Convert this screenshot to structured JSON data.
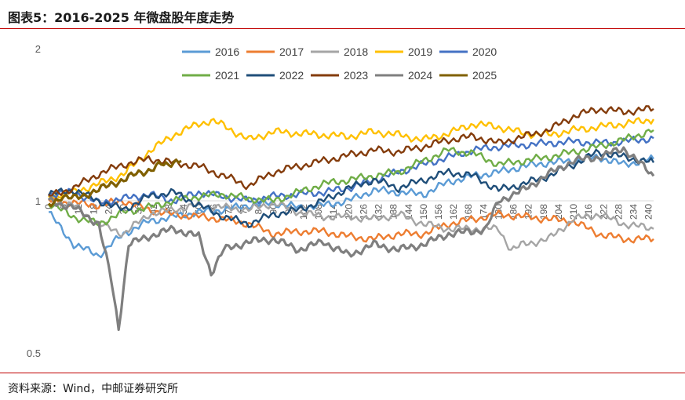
{
  "header": {
    "title": "图表5：2016-2025 年微盘股年度走势"
  },
  "footer": {
    "source": "资料来源：Wind，中邮证券研究所"
  },
  "colors": {
    "rule": "#c00000",
    "axis": "#d9d9d9",
    "text": "#595959"
  },
  "chart_data": {
    "type": "line",
    "title": "",
    "xlabel": "",
    "ylabel": "",
    "y_scale": "log",
    "ylim": [
      0.5,
      2
    ],
    "yticks": [
      0.5,
      1,
      2
    ],
    "xlim": [
      0,
      242
    ],
    "xticks": [
      0,
      6,
      12,
      18,
      24,
      30,
      36,
      42,
      48,
      54,
      60,
      66,
      72,
      78,
      84,
      90,
      96,
      102,
      108,
      114,
      120,
      126,
      132,
      138,
      144,
      150,
      156,
      162,
      168,
      174,
      180,
      186,
      192,
      198,
      204,
      210,
      216,
      222,
      228,
      234,
      240
    ],
    "legend_position": "top",
    "series": [
      {
        "name": "2016",
        "color": "#5b9bd5",
        "x": [
          0,
          5,
          10,
          20,
          30,
          40,
          50,
          60,
          70,
          80,
          90,
          100,
          110,
          120,
          130,
          140,
          150,
          160,
          170,
          180,
          190,
          200,
          210,
          220,
          230,
          242
        ],
        "y": [
          0.95,
          0.88,
          0.82,
          0.78,
          0.86,
          0.91,
          0.93,
          0.95,
          0.96,
          0.98,
          0.99,
          0.97,
          0.98,
          1.0,
          1.05,
          1.04,
          1.03,
          1.09,
          1.12,
          1.14,
          1.17,
          1.19,
          1.2,
          1.22,
          1.18,
          1.21
        ]
      },
      {
        "name": "2017",
        "color": "#ed7d31",
        "x": [
          0,
          10,
          20,
          30,
          40,
          50,
          60,
          70,
          80,
          90,
          100,
          110,
          120,
          130,
          140,
          150,
          160,
          170,
          180,
          190,
          200,
          210,
          220,
          230,
          242
        ],
        "y": [
          1.0,
          0.99,
          0.98,
          1.0,
          0.96,
          0.94,
          0.93,
          0.92,
          0.9,
          0.86,
          0.87,
          0.87,
          0.85,
          0.84,
          0.86,
          0.86,
          0.9,
          0.92,
          0.94,
          0.93,
          0.92,
          0.91,
          0.86,
          0.84,
          0.84
        ]
      },
      {
        "name": "2018",
        "color": "#a5a5a5",
        "x": [
          0,
          10,
          20,
          30,
          40,
          50,
          60,
          70,
          80,
          90,
          100,
          110,
          120,
          130,
          140,
          150,
          160,
          170,
          180,
          185,
          190,
          200,
          210,
          220,
          230,
          242
        ],
        "y": [
          1.0,
          0.98,
          0.9,
          0.86,
          0.94,
          0.96,
          0.98,
          0.97,
          0.96,
          0.99,
          0.95,
          0.93,
          0.93,
          0.92,
          0.94,
          0.9,
          0.88,
          0.88,
          0.88,
          0.8,
          0.82,
          0.84,
          0.92,
          0.94,
          0.9,
          0.88
        ]
      },
      {
        "name": "2019",
        "color": "#ffc000",
        "x": [
          0,
          10,
          20,
          30,
          40,
          50,
          60,
          65,
          70,
          80,
          90,
          100,
          110,
          120,
          130,
          140,
          150,
          160,
          170,
          180,
          190,
          200,
          210,
          220,
          230,
          242
        ],
        "y": [
          1.02,
          1.04,
          1.08,
          1.13,
          1.25,
          1.35,
          1.42,
          1.44,
          1.41,
          1.32,
          1.37,
          1.36,
          1.35,
          1.34,
          1.37,
          1.35,
          1.32,
          1.36,
          1.42,
          1.4,
          1.36,
          1.35,
          1.38,
          1.4,
          1.42,
          1.45
        ]
      },
      {
        "name": "2020",
        "color": "#4472c4",
        "x": [
          0,
          10,
          20,
          30,
          40,
          50,
          60,
          70,
          80,
          90,
          100,
          110,
          120,
          130,
          140,
          150,
          160,
          170,
          180,
          190,
          200,
          210,
          220,
          230,
          242
        ],
        "y": [
          1.03,
          1.04,
          0.99,
          1.01,
          1.03,
          1.0,
          1.04,
          1.02,
          1.0,
          1.02,
          1.03,
          1.04,
          1.06,
          1.1,
          1.14,
          1.18,
          1.22,
          1.26,
          1.28,
          1.29,
          1.3,
          1.31,
          1.3,
          1.31,
          1.33
        ]
      },
      {
        "name": "2021",
        "color": "#70ad47",
        "x": [
          0,
          10,
          20,
          30,
          40,
          50,
          60,
          70,
          80,
          90,
          100,
          110,
          120,
          130,
          140,
          150,
          160,
          170,
          180,
          190,
          200,
          210,
          220,
          230,
          242
        ],
        "y": [
          0.99,
          0.93,
          0.9,
          0.95,
          0.97,
          1.0,
          1.02,
          1.03,
          1.01,
          1.0,
          1.04,
          1.08,
          1.1,
          1.12,
          1.14,
          1.2,
          1.26,
          1.24,
          1.18,
          1.2,
          1.22,
          1.25,
          1.28,
          1.32,
          1.38
        ]
      },
      {
        "name": "2022",
        "color": "#1f4e79",
        "x": [
          0,
          10,
          20,
          30,
          40,
          50,
          60,
          70,
          80,
          90,
          100,
          110,
          120,
          130,
          140,
          150,
          160,
          170,
          180,
          190,
          200,
          210,
          220,
          230,
          242
        ],
        "y": [
          1.03,
          1.05,
          1.0,
          0.96,
          1.02,
          1.04,
          0.98,
          0.93,
          0.9,
          0.94,
          0.96,
          1.0,
          1.06,
          1.1,
          1.06,
          1.1,
          1.14,
          1.12,
          1.05,
          1.08,
          1.12,
          1.18,
          1.25,
          1.22,
          1.19
        ]
      },
      {
        "name": "2023",
        "color": "#843c0c",
        "x": [
          0,
          10,
          20,
          30,
          40,
          50,
          60,
          70,
          80,
          90,
          100,
          110,
          120,
          130,
          140,
          150,
          160,
          170,
          180,
          190,
          200,
          210,
          220,
          230,
          242
        ],
        "y": [
          1.02,
          1.06,
          1.13,
          1.18,
          1.21,
          1.19,
          1.17,
          1.12,
          1.07,
          1.14,
          1.17,
          1.2,
          1.23,
          1.26,
          1.25,
          1.28,
          1.32,
          1.34,
          1.3,
          1.34,
          1.38,
          1.47,
          1.52,
          1.5,
          1.52
        ]
      },
      {
        "name": "2024",
        "color": "#7f7f7f",
        "x": [
          0,
          10,
          20,
          25,
          28,
          32,
          40,
          50,
          60,
          65,
          70,
          80,
          90,
          100,
          110,
          120,
          130,
          140,
          150,
          160,
          170,
          175,
          180,
          190,
          200,
          210,
          220,
          230,
          242
        ],
        "y": [
          1.0,
          0.97,
          0.9,
          0.7,
          0.56,
          0.82,
          0.85,
          0.88,
          0.85,
          0.72,
          0.8,
          0.83,
          0.84,
          0.8,
          0.83,
          0.78,
          0.82,
          0.8,
          0.82,
          0.86,
          0.87,
          0.88,
          1.0,
          1.05,
          1.13,
          1.2,
          1.22,
          1.27,
          1.12
        ]
      },
      {
        "name": "2025",
        "color": "#806000",
        "x": [
          0,
          5,
          10,
          15,
          20,
          25,
          30,
          35,
          40,
          45,
          48,
          50,
          53
        ],
        "y": [
          0.98,
          1.02,
          1.01,
          1.03,
          1.05,
          1.08,
          1.1,
          1.13,
          1.15,
          1.18,
          1.17,
          1.2,
          1.2
        ]
      }
    ]
  }
}
